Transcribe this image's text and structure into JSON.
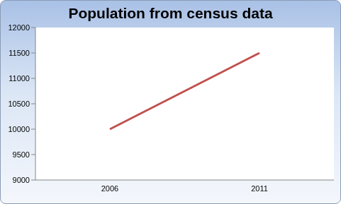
{
  "chart_data": {
    "type": "line",
    "title": "Population from census data",
    "categories": [
      "2006",
      "2011"
    ],
    "values": [
      10000,
      11500
    ],
    "color": "#c0504d",
    "ylim": [
      9000,
      12000
    ],
    "yticks": [
      9000,
      9500,
      10000,
      10500,
      11000,
      11500,
      12000
    ],
    "grid": false
  }
}
